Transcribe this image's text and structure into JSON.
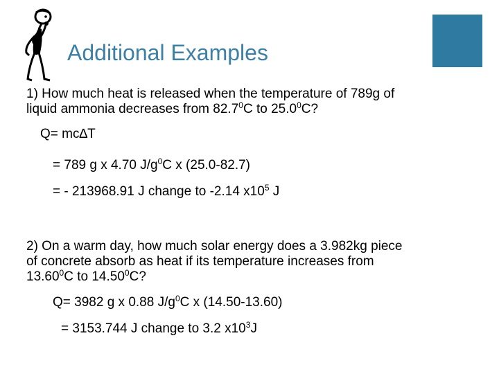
{
  "slide": {
    "title": "Additional Examples",
    "accent_color": "#2e7aa1",
    "title_color": "#3d7fa5",
    "figure_icon": "thinking-stick-figure-icon"
  },
  "example1": {
    "question_line1": "1) How much heat is released when the temperature of 789g of",
    "question_line2_a": "liquid ammonia decreases from 82.7",
    "question_line2_sup1": "0",
    "question_line2_b": "C to 25.0",
    "question_line2_sup2": "0",
    "question_line2_c": "C?",
    "formula": "Q= mc∆T",
    "step1_a": "= 789 g x 4.70 J/g",
    "step1_sup": "0",
    "step1_b": "C x (25.0-82.7)",
    "step2_a": "= - 213968.91 J change to -2.14 x10",
    "step2_sup": "5",
    "step2_b": " J"
  },
  "example2": {
    "question_line1": "2) On a warm day, how much solar energy does a 3.982kg piece",
    "question_line2": "of concrete absorb as heat if its temperature increases from",
    "question_line3_a": "13.60",
    "question_line3_sup1": "0",
    "question_line3_b": "C to 14.50",
    "question_line3_sup2": "0",
    "question_line3_c": "C?",
    "step1_a": "Q= 3982 g x 0.88 J/g",
    "step1_sup": "0",
    "step1_b": "C x (14.50-13.60)",
    "step2_a": "= 3153.744 J  change to 3.2 x10",
    "step2_sup": "3",
    "step2_b": "J"
  }
}
